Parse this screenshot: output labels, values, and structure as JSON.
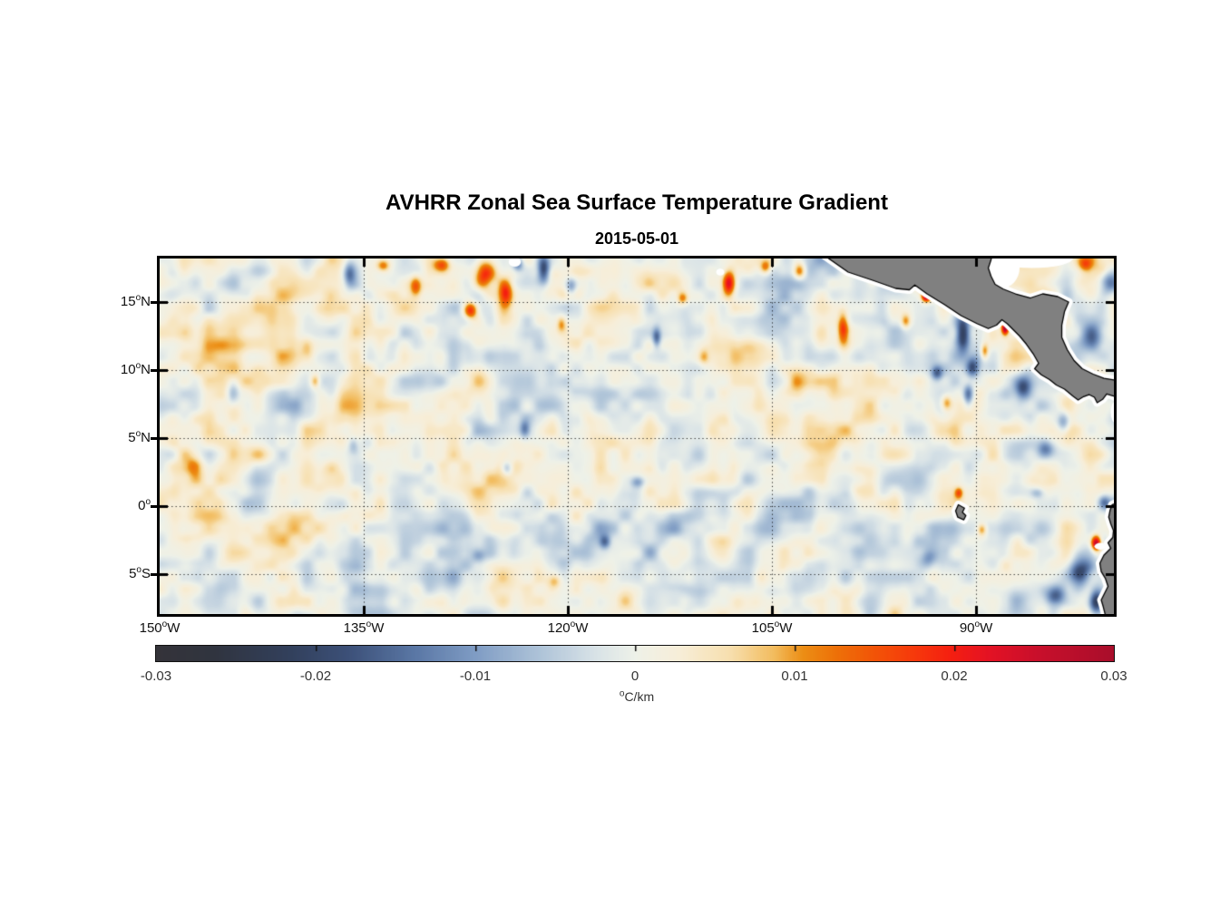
{
  "title": "AVHRR Zonal Sea Surface Temperature Gradient",
  "subtitle": "2015-05-01",
  "axes": {
    "y_ticks": [
      {
        "value": "15",
        "deg": "o",
        "hemi": "N",
        "lat": 15
      },
      {
        "value": "10",
        "deg": "o",
        "hemi": "N",
        "lat": 10
      },
      {
        "value": "5",
        "deg": "o",
        "hemi": "N",
        "lat": 5
      },
      {
        "value": "0",
        "deg": "o",
        "hemi": "",
        "lat": 0
      },
      {
        "value": "5",
        "deg": "o",
        "hemi": "S",
        "lat": -5
      }
    ],
    "x_ticks": [
      {
        "value": "150",
        "deg": "o",
        "hemi": "W",
        "lon": -150
      },
      {
        "value": "135",
        "deg": "o",
        "hemi": "W",
        "lon": -135
      },
      {
        "value": "120",
        "deg": "o",
        "hemi": "W",
        "lon": -120
      },
      {
        "value": "105",
        "deg": "o",
        "hemi": "W",
        "lon": -105
      },
      {
        "value": "90",
        "deg": "o",
        "hemi": "W",
        "lon": -90
      }
    ],
    "grid_lons": [
      -135,
      -120,
      -105,
      -90
    ],
    "grid_lats": [
      15,
      10,
      5,
      0,
      -5
    ]
  },
  "colorbar": {
    "tick_labels": [
      "-0.03",
      "-0.02",
      "-0.01",
      "0",
      "0.01",
      "0.02",
      "0.03"
    ],
    "tick_values": [
      -0.03,
      -0.02,
      -0.01,
      0,
      0.01,
      0.02,
      0.03
    ],
    "unit_sup": "o",
    "unit_text": "C/km"
  },
  "chart_data": {
    "type": "heatmap",
    "title": "AVHRR Zonal Sea Surface Temperature Gradient",
    "date": "2015-05-01",
    "units": "°C/km",
    "lon_range": [
      -150,
      -79.87
    ],
    "lat_range": [
      -7.93,
      18.2
    ],
    "value_range": [
      -0.03,
      0.03
    ],
    "grid": "dotted",
    "land_color": "#808080",
    "coast_outline": "#000000",
    "missing_color": "#ffffff",
    "ocean_base": "#eef1e8",
    "colormap_stops": [
      [
        0.0,
        "#343339"
      ],
      [
        0.06,
        "#30343f"
      ],
      [
        0.1,
        "#313a4e"
      ],
      [
        0.14,
        "#32405c"
      ],
      [
        0.2,
        "#3c5078"
      ],
      [
        0.27,
        "#5a77a5"
      ],
      [
        0.333,
        "#7f9cc4"
      ],
      [
        0.4,
        "#aec3d8"
      ],
      [
        0.46,
        "#d9e3e7"
      ],
      [
        0.5,
        "#eef1e8"
      ],
      [
        0.545,
        "#f7eed9"
      ],
      [
        0.6,
        "#f7dfae"
      ],
      [
        0.645,
        "#f2bc5e"
      ],
      [
        0.675,
        "#ec8e15"
      ],
      [
        0.71,
        "#ed7108"
      ],
      [
        0.75,
        "#f25407"
      ],
      [
        0.79,
        "#f63a0b"
      ],
      [
        0.83,
        "#f51f10"
      ],
      [
        0.87,
        "#e41224"
      ],
      [
        0.92,
        "#c90f2b"
      ],
      [
        1.0,
        "#a90e2b"
      ]
    ],
    "noise": {
      "seed": 7,
      "octaves": [
        [
          3.4,
          0.0032
        ],
        [
          1.8,
          0.0052
        ],
        [
          0.9,
          0.003
        ]
      ]
    },
    "features": [
      [
        -126.2,
        17.0,
        0.024,
        0.8,
        1.2
      ],
      [
        -127.2,
        14.4,
        0.02,
        0.5,
        0.6
      ],
      [
        -124.6,
        15.7,
        0.016,
        0.5,
        0.9
      ],
      [
        -129.3,
        17.8,
        0.014,
        0.6,
        0.5
      ],
      [
        -131.2,
        16.2,
        0.015,
        0.45,
        0.8
      ],
      [
        -133.6,
        17.7,
        0.013,
        0.5,
        0.45
      ],
      [
        -121.8,
        17.4,
        -0.02,
        0.45,
        1.0
      ],
      [
        -123.7,
        17.8,
        -0.013,
        0.4,
        0.5
      ],
      [
        -136.1,
        17.1,
        -0.014,
        0.45,
        0.9
      ],
      [
        -119.8,
        16.2,
        -0.01,
        0.4,
        0.6
      ],
      [
        -144.6,
        8.3,
        -0.012,
        0.5,
        0.8
      ],
      [
        -138.6,
        9.2,
        0.012,
        0.35,
        0.5
      ],
      [
        -139.2,
        11.8,
        0.008,
        0.5,
        0.7
      ],
      [
        -147.5,
        3.0,
        0.007,
        0.6,
        0.8
      ],
      [
        -135.8,
        4.5,
        -0.007,
        0.4,
        0.6
      ],
      [
        -120.5,
        13.4,
        0.01,
        0.35,
        0.6
      ],
      [
        -113.5,
        12.4,
        -0.013,
        0.3,
        0.7
      ],
      [
        -111.6,
        15.3,
        0.012,
        0.4,
        0.5
      ],
      [
        -108.2,
        16.4,
        0.022,
        0.45,
        0.9
      ],
      [
        -105.5,
        17.6,
        0.012,
        0.4,
        0.5
      ],
      [
        -103.0,
        17.3,
        0.016,
        0.45,
        0.6
      ],
      [
        -110.0,
        11.0,
        0.008,
        0.4,
        0.6
      ],
      [
        -114.9,
        1.8,
        -0.009,
        0.5,
        0.4
      ],
      [
        -117.3,
        -2.6,
        -0.012,
        0.4,
        0.5
      ],
      [
        -124.5,
        2.8,
        -0.01,
        0.4,
        0.5
      ],
      [
        -123.2,
        5.7,
        -0.01,
        0.35,
        0.6
      ],
      [
        -126.6,
        -3.6,
        -0.008,
        0.5,
        0.5
      ],
      [
        -121.0,
        -5.5,
        0.008,
        0.5,
        0.5
      ],
      [
        -99.8,
        13.2,
        0.016,
        0.4,
        1.2
      ],
      [
        -97.6,
        17.1,
        0.014,
        0.4,
        0.7
      ],
      [
        -95.2,
        13.6,
        0.011,
        0.35,
        0.55
      ],
      [
        -93.7,
        15.5,
        0.028,
        0.35,
        0.45
      ],
      [
        -92.9,
        9.8,
        -0.013,
        0.4,
        0.5
      ],
      [
        -92.2,
        7.6,
        0.013,
        0.4,
        0.6
      ],
      [
        -90.6,
        8.2,
        -0.013,
        0.35,
        0.8
      ],
      [
        -91.0,
        12.7,
        -0.022,
        0.5,
        1.3
      ],
      [
        -90.3,
        10.2,
        -0.016,
        0.45,
        0.7
      ],
      [
        -89.4,
        11.4,
        0.014,
        0.3,
        0.6
      ],
      [
        -87.9,
        13.1,
        0.027,
        0.25,
        0.45
      ],
      [
        -86.6,
        8.7,
        -0.015,
        0.6,
        0.8
      ],
      [
        -84.9,
        4.2,
        -0.011,
        0.6,
        0.6
      ],
      [
        -83.6,
        6.2,
        -0.013,
        0.5,
        0.8
      ],
      [
        -85.5,
        1.0,
        -0.008,
        0.5,
        0.4
      ],
      [
        -91.3,
        1.0,
        0.013,
        0.3,
        0.4
      ],
      [
        -89.6,
        -1.7,
        0.012,
        0.35,
        0.45
      ],
      [
        -93.5,
        -4.0,
        -0.008,
        0.6,
        0.6
      ],
      [
        -81.2,
        -2.7,
        0.028,
        0.35,
        0.55
      ],
      [
        -82.4,
        -4.7,
        -0.02,
        0.8,
        1.0
      ],
      [
        -84.2,
        -6.4,
        -0.016,
        0.7,
        0.7
      ],
      [
        -81.2,
        -7.0,
        -0.022,
        0.5,
        0.9
      ],
      [
        -80.6,
        0.3,
        -0.01,
        0.4,
        0.5
      ],
      [
        -81.5,
        12.5,
        -0.012,
        0.8,
        1.0
      ],
      [
        -80.3,
        16.5,
        -0.011,
        0.7,
        0.8
      ],
      [
        -82.0,
        17.8,
        0.01,
        0.5,
        0.5
      ],
      [
        -141.0,
        13.0,
        0.004,
        4.0,
        3.0
      ],
      [
        -103.0,
        6.0,
        0.003,
        5.0,
        4.0
      ],
      [
        -116.0,
        16.5,
        0.004,
        4.0,
        2.5
      ],
      [
        -120.0,
        -4.0,
        -0.002,
        6.0,
        3.0
      ]
    ],
    "missing_patches": [
      [
        -88.2,
        17.5,
        1.4,
        1.5
      ],
      [
        -85.9,
        18.2,
        3.0,
        0.7
      ],
      [
        -123.9,
        17.95,
        0.45,
        0.35
      ],
      [
        -108.8,
        17.2,
        0.3,
        0.25
      ],
      [
        -80.85,
        -2.95,
        0.45,
        0.25
      ],
      [
        -79.75,
        6.9,
        0.35,
        0.8
      ]
    ],
    "land_polygons": {
      "central_america": [
        [
          -101.4,
          18.6
        ],
        [
          -99.4,
          17.2
        ],
        [
          -97.6,
          16.6
        ],
        [
          -95.9,
          16.0
        ],
        [
          -94.9,
          15.9
        ],
        [
          -94.5,
          16.25
        ],
        [
          -93.6,
          15.6
        ],
        [
          -92.3,
          14.8
        ],
        [
          -91.1,
          14.0
        ],
        [
          -89.9,
          13.4
        ],
        [
          -89.1,
          13.05
        ],
        [
          -88.5,
          13.3
        ],
        [
          -88.1,
          13.7
        ],
        [
          -87.7,
          13.4
        ],
        [
          -87.3,
          13.0
        ],
        [
          -86.8,
          12.5
        ],
        [
          -86.3,
          11.9
        ],
        [
          -85.8,
          11.2
        ],
        [
          -85.4,
          10.5
        ],
        [
          -85.7,
          10.1
        ],
        [
          -85.2,
          9.65
        ],
        [
          -84.6,
          9.3
        ],
        [
          -84.1,
          8.9
        ],
        [
          -83.5,
          8.6
        ],
        [
          -82.9,
          8.1
        ],
        [
          -82.5,
          7.8
        ],
        [
          -82.1,
          8.05
        ],
        [
          -81.7,
          8.2
        ],
        [
          -81.3,
          8.0
        ],
        [
          -81.1,
          7.6
        ],
        [
          -80.7,
          7.85
        ],
        [
          -80.4,
          8.25
        ],
        [
          -79.9,
          8.1
        ],
        [
          -79.4,
          7.8
        ],
        [
          -79.4,
          9.2
        ],
        [
          -80.6,
          9.4
        ],
        [
          -81.4,
          9.7
        ],
        [
          -82.2,
          10.1
        ],
        [
          -82.8,
          10.7
        ],
        [
          -83.3,
          11.5
        ],
        [
          -83.7,
          12.4
        ],
        [
          -83.7,
          13.3
        ],
        [
          -83.5,
          14.3
        ],
        [
          -83.2,
          15.0
        ],
        [
          -84.0,
          15.4
        ],
        [
          -85.1,
          15.6
        ],
        [
          -86.0,
          15.3
        ],
        [
          -87.1,
          15.6
        ],
        [
          -88.0,
          15.95
        ],
        [
          -88.6,
          16.3
        ],
        [
          -88.9,
          16.9
        ],
        [
          -89.1,
          17.5
        ],
        [
          -88.9,
          18.1
        ],
        [
          -88.8,
          18.6
        ]
      ],
      "south_america": [
        [
          -79.4,
          0.35
        ],
        [
          -80.0,
          0.1
        ],
        [
          -80.15,
          -0.3
        ],
        [
          -80.25,
          -0.8
        ],
        [
          -80.1,
          -1.3
        ],
        [
          -79.9,
          -1.8
        ],
        [
          -79.95,
          -2.3
        ],
        [
          -80.3,
          -2.7
        ],
        [
          -80.1,
          -3.1
        ],
        [
          -80.6,
          -3.6
        ],
        [
          -80.9,
          -4.2
        ],
        [
          -80.8,
          -4.8
        ],
        [
          -80.5,
          -5.3
        ],
        [
          -80.3,
          -5.9
        ],
        [
          -80.55,
          -6.4
        ],
        [
          -80.8,
          -6.9
        ],
        [
          -80.65,
          -7.4
        ],
        [
          -80.45,
          -8.2
        ],
        [
          -79.4,
          -8.2
        ]
      ],
      "galapagos": [
        [
          -91.3,
          0.1
        ],
        [
          -90.85,
          -0.15
        ],
        [
          -91.0,
          -0.45
        ],
        [
          -90.75,
          -0.7
        ],
        [
          -90.9,
          -1.0
        ],
        [
          -91.35,
          -0.8
        ],
        [
          -91.5,
          -0.35
        ]
      ]
    }
  }
}
